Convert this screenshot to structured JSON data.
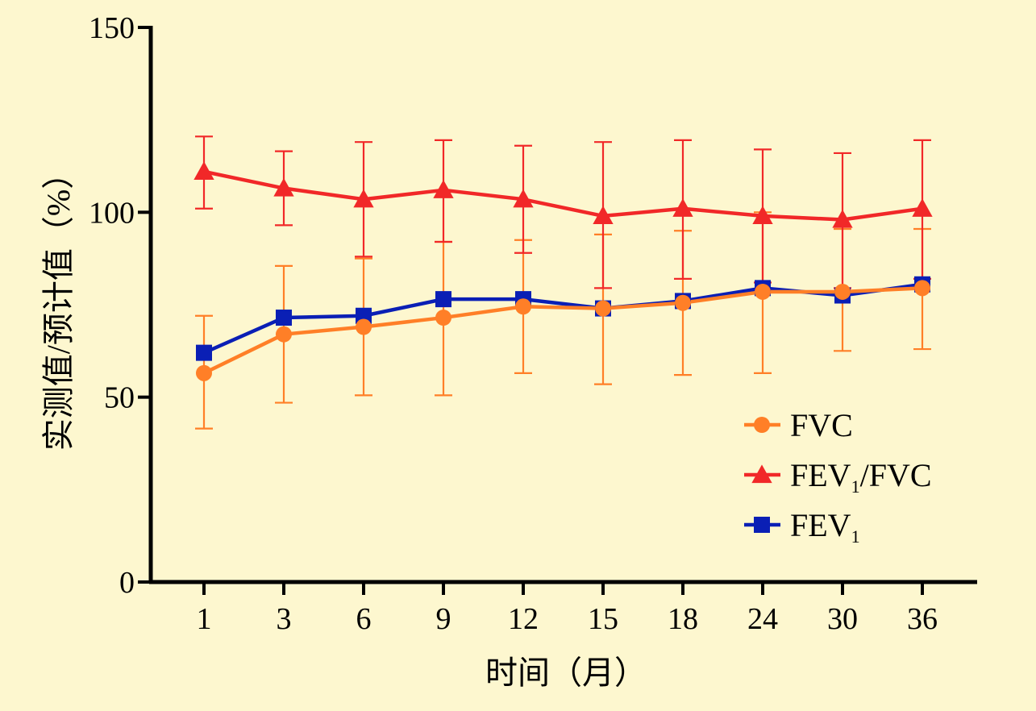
{
  "chart_data": {
    "type": "line",
    "title": "",
    "xlabel": "时间（月）",
    "ylabel": "实测值/预计值（%）",
    "categories": [
      "1",
      "3",
      "6",
      "9",
      "12",
      "15",
      "18",
      "24",
      "30",
      "36"
    ],
    "ylim": [
      0,
      150
    ],
    "yticks": [
      "0",
      "50",
      "100",
      "150"
    ],
    "grid": false,
    "legend_position": "bottom-right",
    "series": [
      {
        "name": "FVC",
        "legend_main": "FVC",
        "legend_sub": "",
        "legend_tail": "",
        "color": "#ff7f27",
        "marker": "circle",
        "values": [
          56.5,
          67,
          69,
          71.5,
          74.5,
          74,
          75.5,
          78.5,
          78.5,
          79.5
        ],
        "err_upper": [
          72,
          85.5,
          87.5,
          92,
          92.5,
          94,
          95,
          100,
          95.5,
          95.5
        ],
        "err_lower": [
          41.5,
          48.5,
          50.5,
          50.5,
          56.5,
          53.5,
          56,
          56.5,
          62.5,
          63
        ]
      },
      {
        "name": "FEV1/FVC",
        "legend_main": "FEV",
        "legend_sub": "1",
        "legend_tail": "/FVC",
        "color": "#f12828",
        "marker": "triangle",
        "values": [
          111,
          106.5,
          103.5,
          106,
          103.5,
          99,
          101,
          99,
          98,
          101
        ],
        "err_upper": [
          120.5,
          116.5,
          119,
          119.5,
          118,
          119,
          119.5,
          117,
          116,
          119.5
        ],
        "err_lower": [
          101,
          96.5,
          88,
          92,
          89,
          79.5,
          82,
          81,
          79.5,
          82
        ]
      },
      {
        "name": "FEV1",
        "legend_main": "FEV",
        "legend_sub": "1",
        "legend_tail": "",
        "color": "#0a1fb5",
        "marker": "square",
        "values": [
          62,
          71.5,
          72,
          76.5,
          76.5,
          74,
          76,
          79.5,
          77.5,
          80.5
        ],
        "err_upper": [
          62,
          71.5,
          72,
          76.5,
          76.5,
          74,
          76,
          79.5,
          77.5,
          80.5
        ],
        "err_lower": [
          62,
          71.5,
          72,
          76.5,
          76.5,
          74,
          76,
          79.5,
          77.5,
          80.5
        ]
      }
    ]
  }
}
